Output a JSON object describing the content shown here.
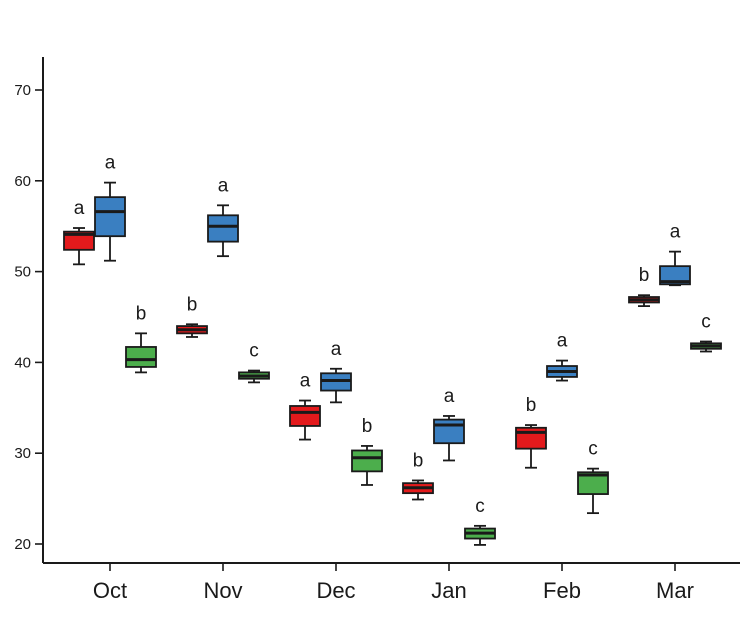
{
  "chart_data": {
    "type": "boxplot",
    "title": "",
    "xlabel": "",
    "ylabel": "",
    "ylim": [
      18,
      74
    ],
    "yticks": [
      20,
      30,
      40,
      50,
      60,
      70
    ],
    "grid": false,
    "legend": "none",
    "categories": [
      "Oct",
      "Nov",
      "Dec",
      "Jan",
      "Feb",
      "Mar"
    ],
    "colors": {
      "red": "#e31a1c",
      "blue": "#3a7fc1",
      "green": "#4cae4c",
      "stroke": "#1a1a1a"
    },
    "boxes": [
      {
        "category": "Oct",
        "color": "red",
        "min": 50.8,
        "q1": 52.4,
        "median": 54.1,
        "q3": 54.4,
        "max": 54.8,
        "label": "a"
      },
      {
        "category": "Oct",
        "color": "blue",
        "min": 51.2,
        "q1": 53.9,
        "median": 56.6,
        "q3": 58.2,
        "max": 59.8,
        "label": "a"
      },
      {
        "category": "Oct",
        "color": "green",
        "min": 38.9,
        "q1": 39.5,
        "median": 40.3,
        "q3": 41.7,
        "max": 43.2,
        "label": "b"
      },
      {
        "category": "Nov",
        "color": "red",
        "min": 42.8,
        "q1": 43.2,
        "median": 43.6,
        "q3": 44.0,
        "max": 44.2,
        "label": "b"
      },
      {
        "category": "Nov",
        "color": "blue",
        "min": 51.7,
        "q1": 53.3,
        "median": 55.0,
        "q3": 56.2,
        "max": 57.3,
        "label": "a"
      },
      {
        "category": "Nov",
        "color": "green",
        "min": 37.8,
        "q1": 38.2,
        "median": 38.5,
        "q3": 38.9,
        "max": 39.1,
        "label": "c"
      },
      {
        "category": "Dec",
        "color": "red",
        "min": 31.5,
        "q1": 33.0,
        "median": 34.5,
        "q3": 35.2,
        "max": 35.8,
        "label": "a"
      },
      {
        "category": "Dec",
        "color": "blue",
        "min": 35.6,
        "q1": 36.9,
        "median": 38.0,
        "q3": 38.8,
        "max": 39.3,
        "label": "a"
      },
      {
        "category": "Dec",
        "color": "green",
        "min": 26.5,
        "q1": 28.0,
        "median": 29.5,
        "q3": 30.3,
        "max": 30.8,
        "label": "b"
      },
      {
        "category": "Jan",
        "color": "red",
        "min": 24.9,
        "q1": 25.6,
        "median": 26.2,
        "q3": 26.7,
        "max": 27.0,
        "label": "b"
      },
      {
        "category": "Jan",
        "color": "blue",
        "min": 29.2,
        "q1": 31.1,
        "median": 33.1,
        "q3": 33.7,
        "max": 34.1,
        "label": "a"
      },
      {
        "category": "Jan",
        "color": "green",
        "min": 19.9,
        "q1": 20.6,
        "median": 21.2,
        "q3": 21.7,
        "max": 22.0,
        "label": "c"
      },
      {
        "category": "Feb",
        "color": "red",
        "min": 28.4,
        "q1": 30.5,
        "median": 32.3,
        "q3": 32.8,
        "max": 33.1,
        "label": "b"
      },
      {
        "category": "Feb",
        "color": "blue",
        "min": 38.0,
        "q1": 38.4,
        "median": 39.0,
        "q3": 39.6,
        "max": 40.2,
        "label": "a"
      },
      {
        "category": "Feb",
        "color": "green",
        "min": 23.4,
        "q1": 25.5,
        "median": 27.6,
        "q3": 27.9,
        "max": 28.3,
        "label": "c"
      },
      {
        "category": "Mar",
        "color": "red",
        "min": 46.2,
        "q1": 46.6,
        "median": 46.9,
        "q3": 47.2,
        "max": 47.4,
        "label": "b"
      },
      {
        "category": "Mar",
        "color": "blue",
        "min": 48.5,
        "q1": 48.6,
        "median": 48.9,
        "q3": 50.6,
        "max": 52.2,
        "label": "a"
      },
      {
        "category": "Mar",
        "color": "green",
        "min": 41.2,
        "q1": 41.5,
        "median": 41.8,
        "q3": 42.1,
        "max": 42.3,
        "label": "c"
      }
    ]
  }
}
